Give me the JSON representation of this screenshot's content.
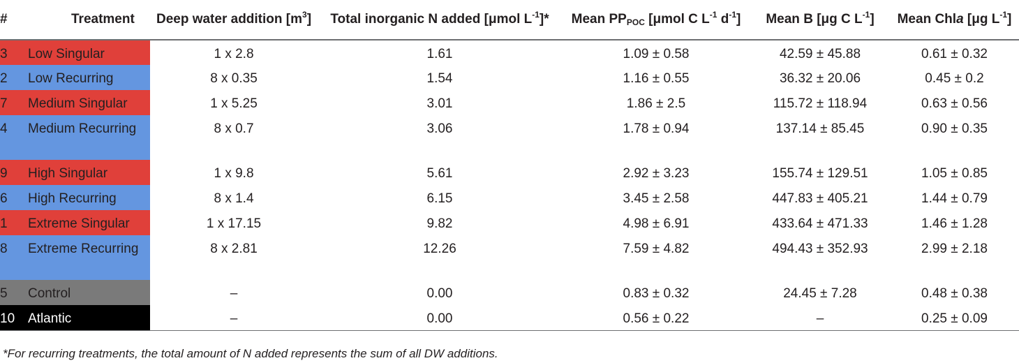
{
  "headers": {
    "hash": "#",
    "treatment": "Treatment",
    "deep_water": "Deep water addition [m",
    "deep_water_sup": "3",
    "deep_water_end": "]",
    "total_n": "Total inorganic N added [μmol L",
    "total_n_sup": "-1",
    "total_n_end": "]*",
    "pp": "Mean PP",
    "pp_sub": "POC",
    "pp_mid": " [μmol C L",
    "pp_sup1": "-1",
    "pp_mid2": " d",
    "pp_sup2": "-1",
    "pp_end": "]",
    "b": "Mean B [μg C L",
    "b_sup": "-1",
    "b_end": "]",
    "chla": "Mean Chl",
    "chla_italic": "a",
    "chla_mid": " [μg L",
    "chla_sup": "-1",
    "chla_end": "]"
  },
  "rows": [
    {
      "num": "3",
      "treatment": "Low Singular",
      "deep_water": "1 x 2.8",
      "total_n": "1.61",
      "pp": "1.09 ± 0.58",
      "b": "42.59 ± 45.88",
      "chla": "0.61 ± 0.32",
      "color": "#e0403a"
    },
    {
      "num": "2",
      "treatment": "Low Recurring",
      "deep_water": "8 x 0.35",
      "total_n": "1.54",
      "pp": "1.16 ± 0.55",
      "b": "36.32 ± 20.06",
      "chla": "0.45 ± 0.2",
      "color": "#6496e0"
    },
    {
      "num": "7",
      "treatment": "Medium Singular",
      "deep_water": "1 x 5.25",
      "total_n": "3.01",
      "pp": "1.86 ± 2.5",
      "b": "115.72 ± 118.94",
      "chla": "0.63 ± 0.56",
      "color": "#e0403a"
    },
    {
      "num": "4",
      "treatment": "Medium Recurring",
      "deep_water": "8 x 0.7",
      "total_n": "3.06",
      "pp": "1.78 ± 0.94",
      "b": "137.14 ± 85.45",
      "chla": "0.90 ± 0.35",
      "color": "#6496e0"
    },
    {
      "num": "9",
      "treatment": "High Singular",
      "deep_water": "1 x 9.8",
      "total_n": "5.61",
      "pp": "2.92 ± 3.23",
      "b": "155.74 ± 129.51",
      "chla": "1.05 ± 0.85",
      "color": "#e0403a"
    },
    {
      "num": "6",
      "treatment": "High Recurring",
      "deep_water": "8 x 1.4",
      "total_n": "6.15",
      "pp": "3.45 ± 2.58",
      "b": "447.83 ± 405.21",
      "chla": "1.44 ± 0.79",
      "color": "#6496e0"
    },
    {
      "num": "1",
      "treatment": "Extreme Singular",
      "deep_water": "1 x 17.15",
      "total_n": "9.82",
      "pp": "4.98 ± 6.91",
      "b": "433.64 ± 471.33",
      "chla": "1.46 ± 1.28",
      "color": "#e0403a"
    },
    {
      "num": "8",
      "treatment": "Extreme Recurring",
      "deep_water": "8 x 2.81",
      "total_n": "12.26",
      "pp": "7.59 ± 4.82",
      "b": "494.43 ± 352.93",
      "chla": "2.99 ± 2.18",
      "color": "#6496e0"
    },
    {
      "num": "5",
      "treatment": "Control",
      "deep_water": "–",
      "total_n": "0.00",
      "pp": "0.83 ± 0.32",
      "b": "24.45 ± 7.28",
      "chla": "0.48 ± 0.38",
      "color": "#7a7a7a"
    },
    {
      "num": "10",
      "treatment": "Atlantic",
      "deep_water": "–",
      "total_n": "0.00",
      "pp": "0.56 ± 0.22",
      "b": "–",
      "chla": "0.25 ± 0.09",
      "color": "#000000"
    }
  ],
  "footnote": "*For recurring treatments, the total amount of N added represents the sum of all DW additions."
}
